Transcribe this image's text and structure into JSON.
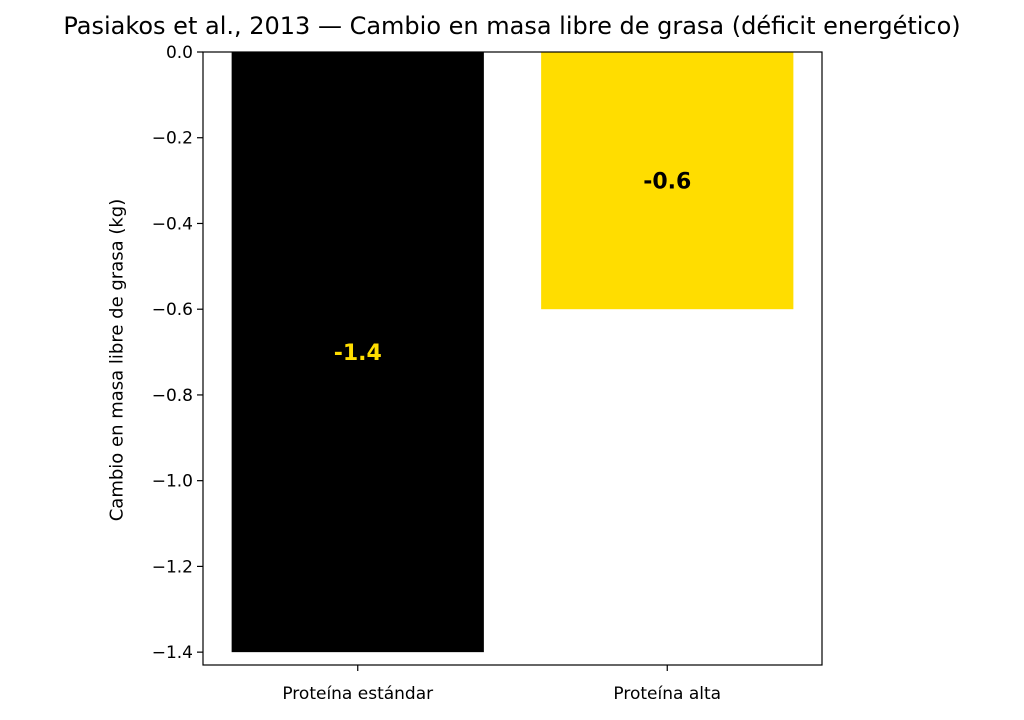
{
  "chart_data": {
    "type": "bar",
    "title": "Pasiakos et al., 2013 — Cambio en masa libre de grasa (déficit energético)",
    "xlabel": "",
    "ylabel": "Cambio en masa libre de grasa (kg)",
    "categories": [
      "Proteína estándar",
      "Proteína alta"
    ],
    "values": [
      -1.4,
      -0.6
    ],
    "data_labels": [
      "-1.4",
      "-0.6"
    ],
    "bar_colors": [
      "#000000",
      "#ffdd00"
    ],
    "label_colors": [
      "#ffdd00",
      "#000000"
    ],
    "ylim": [
      -1.43,
      0.0
    ],
    "yticks": [
      0.0,
      -0.2,
      -0.4,
      -0.6,
      -0.8,
      -1.0,
      -1.2,
      -1.4
    ],
    "ytick_labels": [
      "0.0",
      "−0.2",
      "−0.4",
      "−0.6",
      "−0.8",
      "−1.0",
      "−1.2",
      "−1.4"
    ],
    "grid": false,
    "legend": "none"
  }
}
